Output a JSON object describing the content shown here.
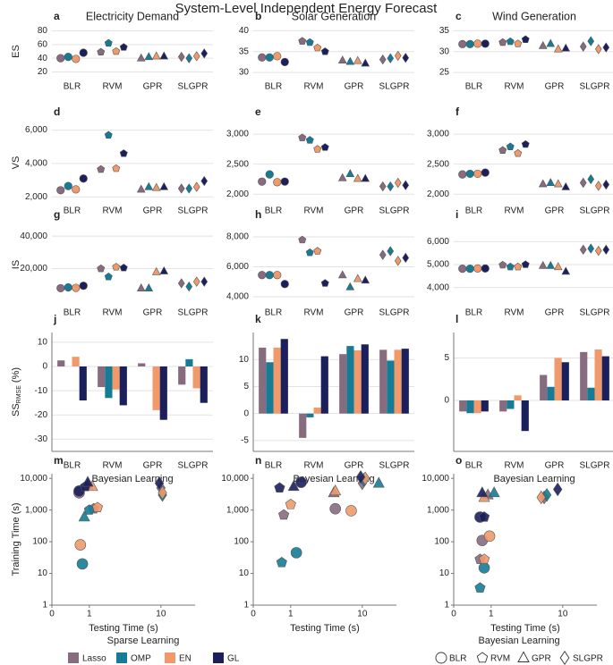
{
  "title": "System-Level Independent Energy Forecast",
  "sparse_legend": {
    "title": "Sparse Learning",
    "items": [
      {
        "name": "Lasso",
        "color": "#876b7f"
      },
      {
        "name": "OMP",
        "color": "#167c95"
      },
      {
        "name": "EN",
        "color": "#f09a6c"
      },
      {
        "name": "GL",
        "color": "#1b1f5c"
      }
    ]
  },
  "bayes_legend": {
    "title": "Bayesian Learning",
    "items": [
      {
        "name": "BLR",
        "shape": "circle"
      },
      {
        "name": "RVM",
        "shape": "pentagon"
      },
      {
        "name": "GPR",
        "shape": "triangle"
      },
      {
        "name": "SLGPR",
        "shape": "diamond"
      }
    ]
  },
  "chart_data": [
    {
      "type": "dot",
      "panel": "a",
      "title": "Electricity Demand",
      "ylabel": "ES",
      "categories": [
        "BLR",
        "RVM",
        "GPR",
        "SLGPR"
      ],
      "ylim": [
        18,
        82
      ],
      "yticks": [
        20,
        40,
        60,
        80
      ],
      "grid": true,
      "series": [
        {
          "values": [
            40,
            49,
            40,
            42
          ]
        },
        {
          "values": [
            42,
            62,
            42,
            40
          ]
        },
        {
          "values": [
            39,
            50,
            43,
            43
          ]
        },
        {
          "values": [
            48,
            56,
            43,
            47
          ]
        }
      ]
    },
    {
      "type": "dot",
      "panel": "b",
      "title": "Solar Generation",
      "categories": [
        "BLR",
        "RVM",
        "GPR",
        "SLGPR"
      ],
      "ylim": [
        29.8,
        40.3
      ],
      "yticks": [
        30,
        35,
        40
      ],
      "grid": true,
      "series": [
        {
          "values": [
            33.6,
            37.5,
            32.9,
            33.1
          ]
        },
        {
          "values": [
            33.6,
            37.2,
            32.6,
            33.4
          ]
        },
        {
          "values": [
            33.9,
            35.9,
            32.8,
            34.0
          ]
        },
        {
          "values": [
            32.5,
            35.0,
            32.2,
            33.5
          ]
        }
      ]
    },
    {
      "type": "dot",
      "panel": "c",
      "title": "Wind Generation",
      "categories": [
        "BLR",
        "RVM",
        "GPR",
        "SLGPR"
      ],
      "ylim": [
        24.8,
        35.3
      ],
      "yticks": [
        25,
        30,
        35
      ],
      "grid": true,
      "series": [
        {
          "values": [
            31.8,
            32.2,
            31.4,
            31.2
          ]
        },
        {
          "values": [
            31.8,
            32.4,
            31.9,
            32.5
          ]
        },
        {
          "values": [
            31.9,
            31.9,
            30.6,
            30.6
          ]
        },
        {
          "values": [
            31.9,
            32.9,
            30.8,
            31.0
          ]
        }
      ]
    },
    {
      "type": "dot",
      "panel": "d",
      "ylabel": "VS",
      "categories": [
        "BLR",
        "RVM",
        "GPR",
        "SLGPR"
      ],
      "ylim": [
        1800,
        6300
      ],
      "yticks": [
        {
          "value": 2000,
          "label": "2,000"
        },
        {
          "value": 4000,
          "label": "4,000"
        },
        {
          "value": 6000,
          "label": "6,000"
        }
      ],
      "grid": true,
      "series": [
        {
          "values": [
            2400,
            3650,
            2450,
            2500
          ]
        },
        {
          "values": [
            2650,
            5700,
            2600,
            2500
          ]
        },
        {
          "values": [
            2450,
            3700,
            2550,
            2600
          ]
        },
        {
          "values": [
            3100,
            4600,
            2600,
            2950
          ]
        }
      ]
    },
    {
      "type": "dot",
      "panel": "e",
      "categories": [
        "BLR",
        "RVM",
        "GPR",
        "SLGPR"
      ],
      "ylim": [
        1900,
        3150
      ],
      "yticks": [
        {
          "value": 2000,
          "label": "2,000"
        },
        {
          "value": 2500,
          "label": "2,500"
        },
        {
          "value": 3000,
          "label": "3,000"
        }
      ],
      "grid": true,
      "series": [
        {
          "values": [
            2210,
            2940,
            2270,
            2130
          ]
        },
        {
          "values": [
            2330,
            2900,
            2340,
            2130
          ]
        },
        {
          "values": [
            2200,
            2750,
            2260,
            2190
          ]
        },
        {
          "values": [
            2210,
            2780,
            2260,
            2150
          ]
        }
      ]
    },
    {
      "type": "dot",
      "panel": "f",
      "categories": [
        "BLR",
        "RVM",
        "GPR",
        "SLGPR"
      ],
      "ylim": [
        1900,
        3150
      ],
      "yticks": [
        {
          "value": 2000,
          "label": "2,000"
        },
        {
          "value": 2500,
          "label": "2,500"
        },
        {
          "value": 3000,
          "label": "3,000"
        }
      ],
      "grid": true,
      "series": [
        {
          "values": [
            2330,
            2730,
            2170,
            2190
          ]
        },
        {
          "values": [
            2340,
            2790,
            2190,
            2250
          ]
        },
        {
          "values": [
            2340,
            2680,
            2170,
            2140
          ]
        },
        {
          "values": [
            2360,
            2830,
            2120,
            2160
          ]
        }
      ]
    },
    {
      "type": "dot",
      "panel": "g",
      "ylabel": "IS",
      "categories": [
        "BLR",
        "RVM",
        "GPR",
        "SLGPR"
      ],
      "ylim": [
        0,
        45000
      ],
      "yticks": [
        {
          "value": 20000,
          "label": "20,000"
        },
        {
          "value": 40000,
          "label": "40,000"
        }
      ],
      "grid": true,
      "series": [
        {
          "values": [
            8000,
            20000,
            8000,
            11000
          ]
        },
        {
          "values": [
            8500,
            15000,
            8000,
            9000
          ]
        },
        {
          "values": [
            8200,
            21000,
            18000,
            12000
          ]
        },
        {
          "values": [
            9500,
            20500,
            18500,
            12000
          ]
        }
      ]
    },
    {
      "type": "dot",
      "panel": "h",
      "categories": [
        "BLR",
        "RVM",
        "GPR",
        "SLGPR"
      ],
      "ylim": [
        3700,
        8600
      ],
      "yticks": [
        {
          "value": 4000,
          "label": "4,000"
        },
        {
          "value": 6000,
          "label": "6,000"
        },
        {
          "value": 8000,
          "label": "8,000"
        }
      ],
      "grid": true,
      "series": [
        {
          "values": [
            5450,
            7800,
            5450,
            6800
          ]
        },
        {
          "values": [
            5450,
            6950,
            4650,
            7050
          ]
        },
        {
          "values": [
            5450,
            7050,
            5200,
            6400
          ]
        },
        {
          "values": [
            4850,
            4900,
            5100,
            6600
          ]
        }
      ]
    },
    {
      "type": "dot",
      "panel": "i",
      "categories": [
        "BLR",
        "RVM",
        "GPR",
        "SLGPR"
      ],
      "ylim": [
        3400,
        6600
      ],
      "yticks": [
        {
          "value": 4000,
          "label": "4,000"
        },
        {
          "value": 5000,
          "label": "5,000"
        },
        {
          "value": 6000,
          "label": "6,000"
        }
      ],
      "grid": true,
      "series": [
        {
          "values": [
            4820,
            4980,
            4950,
            5650
          ]
        },
        {
          "values": [
            4820,
            4900,
            4950,
            5700
          ]
        },
        {
          "values": [
            4830,
            4900,
            4900,
            5600
          ]
        },
        {
          "values": [
            4830,
            5000,
            4700,
            5650
          ]
        }
      ]
    },
    {
      "type": "bar",
      "panel": "j",
      "ylabel": "SS",
      "ylabel_sub": "RMSE",
      "ylabel_unit": "(%)",
      "xlabel": "Bayesian Learning",
      "categories": [
        "BLR",
        "RVM",
        "GPR",
        "SLGPR"
      ],
      "ylim": [
        -35,
        14
      ],
      "yticks": [
        -30,
        -20,
        -10,
        0,
        10
      ],
      "grid": true,
      "series": [
        {
          "values": [
            2.5,
            -8.5,
            1.3,
            -7.5
          ]
        },
        {
          "values": [
            0,
            -13,
            0,
            3
          ]
        },
        {
          "values": [
            4,
            -9.5,
            -18,
            -9
          ]
        },
        {
          "values": [
            -14,
            -16,
            -22,
            -15
          ]
        }
      ]
    },
    {
      "type": "bar",
      "panel": "k",
      "xlabel": "Bayesian Learning",
      "categories": [
        "BLR",
        "RVM",
        "GPR",
        "SLGPR"
      ],
      "ylim": [
        -7,
        15
      ],
      "yticks": [
        -5,
        0,
        5,
        10
      ],
      "grid": true,
      "series": [
        {
          "values": [
            12.2,
            -4.5,
            11,
            11.8
          ]
        },
        {
          "values": [
            9.5,
            -0.7,
            12.5,
            9.8
          ]
        },
        {
          "values": [
            12.2,
            1.1,
            11.7,
            11.8
          ]
        },
        {
          "values": [
            13.8,
            10.6,
            12.8,
            12
          ]
        }
      ]
    },
    {
      "type": "bar",
      "panel": "l",
      "xlabel": "Bayesian Learning",
      "categories": [
        "BLR",
        "RVM",
        "GPR",
        "SLGPR"
      ],
      "ylim": [
        -6,
        8
      ],
      "yticks": [
        0,
        5
      ],
      "grid": true,
      "series": [
        {
          "values": [
            -1.3,
            -1.3,
            3,
            5.7
          ]
        },
        {
          "values": [
            -1.5,
            -1.0,
            1.6,
            1.5
          ]
        },
        {
          "values": [
            -1.5,
            0.6,
            5,
            6
          ]
        },
        {
          "values": [
            -1.3,
            -3.6,
            4.5,
            5.2
          ]
        }
      ]
    },
    {
      "type": "scatter",
      "panel": "m",
      "ylabel": "Training Time (s)",
      "xlabel": "Testing Time (s)",
      "xscale": "log",
      "yscale": "log",
      "xlim": [
        0.3,
        30
      ],
      "ylim": [
        1,
        14000
      ],
      "xticks": [
        {
          "value": 0.3,
          "label": "0"
        },
        1,
        10
      ],
      "yticks": [
        1,
        10,
        100,
        {
          "value": 1000,
          "label": "1,000"
        },
        {
          "value": 10000,
          "label": "10,000"
        }
      ],
      "series": [
        {
          "x": [
            0.72,
            1.15,
            0.95,
            10
          ],
          "y": [
            3500,
            1100,
            6000,
            5000
          ]
        },
        {
          "x": [
            0.8,
            1.0,
            0.85,
            10.5
          ],
          "y": [
            20,
            1000,
            600,
            3000
          ]
        },
        {
          "x": [
            0.75,
            1.3,
            1.1,
            10.5
          ],
          "y": [
            80,
            1200,
            5500,
            3500
          ]
        },
        {
          "x": [
            0.72,
            0.88,
            0.95,
            9.5
          ],
          "y": [
            4000,
            5500,
            7500,
            7000
          ]
        }
      ]
    },
    {
      "type": "scatter",
      "panel": "n",
      "xlabel": "Testing Time (s)",
      "xscale": "log",
      "yscale": "log",
      "xlim": [
        0.3,
        30
      ],
      "ylim": [
        1,
        14000
      ],
      "xticks": [
        {
          "value": 0.3,
          "label": "0"
        },
        1,
        10
      ],
      "yticks": [
        1,
        10,
        100,
        {
          "value": 1000,
          "label": "1,000"
        },
        {
          "value": 10000,
          "label": "10,000"
        }
      ],
      "series": [
        {
          "x": [
            4.2,
            0.8,
            4,
            10
          ],
          "y": [
            1100,
            700,
            3500,
            7000
          ]
        },
        {
          "x": [
            1.2,
            0.75,
            17,
            10.5
          ],
          "y": [
            45,
            22,
            7000,
            9000
          ]
        },
        {
          "x": [
            7,
            1.0,
            4.2,
            11
          ],
          "y": [
            950,
            1500,
            4000,
            10000
          ]
        },
        {
          "x": [
            1.4,
            0.7,
            1.1,
            9.5
          ],
          "y": [
            7500,
            5000,
            5500,
            11000
          ]
        }
      ]
    },
    {
      "type": "scatter",
      "panel": "o",
      "xlabel": "Testing Time (s)",
      "xscale": "log",
      "yscale": "log",
      "xlim": [
        0.3,
        30
      ],
      "ylim": [
        1,
        14000
      ],
      "xticks": [
        {
          "value": 0.3,
          "label": "0"
        },
        1,
        10
      ],
      "yticks": [
        1,
        10,
        100,
        {
          "value": 1000,
          "label": "1,000"
        },
        {
          "value": 10000,
          "label": "10,000"
        }
      ],
      "series": [
        {
          "x": [
            0.75,
            0.7,
            0.9,
            5.5
          ],
          "y": [
            110,
            28,
            3000,
            2500
          ]
        },
        {
          "x": [
            0.8,
            0.7,
            1.1,
            6
          ],
          "y": [
            15,
            3.5,
            3500,
            3000
          ]
        },
        {
          "x": [
            0.95,
            0.8,
            0.8,
            5
          ],
          "y": [
            150,
            28,
            2500,
            2500
          ]
        },
        {
          "x": [
            0.7,
            0.8,
            0.75,
            8.5
          ],
          "y": [
            600,
            600,
            3500,
            4500
          ]
        }
      ]
    }
  ]
}
